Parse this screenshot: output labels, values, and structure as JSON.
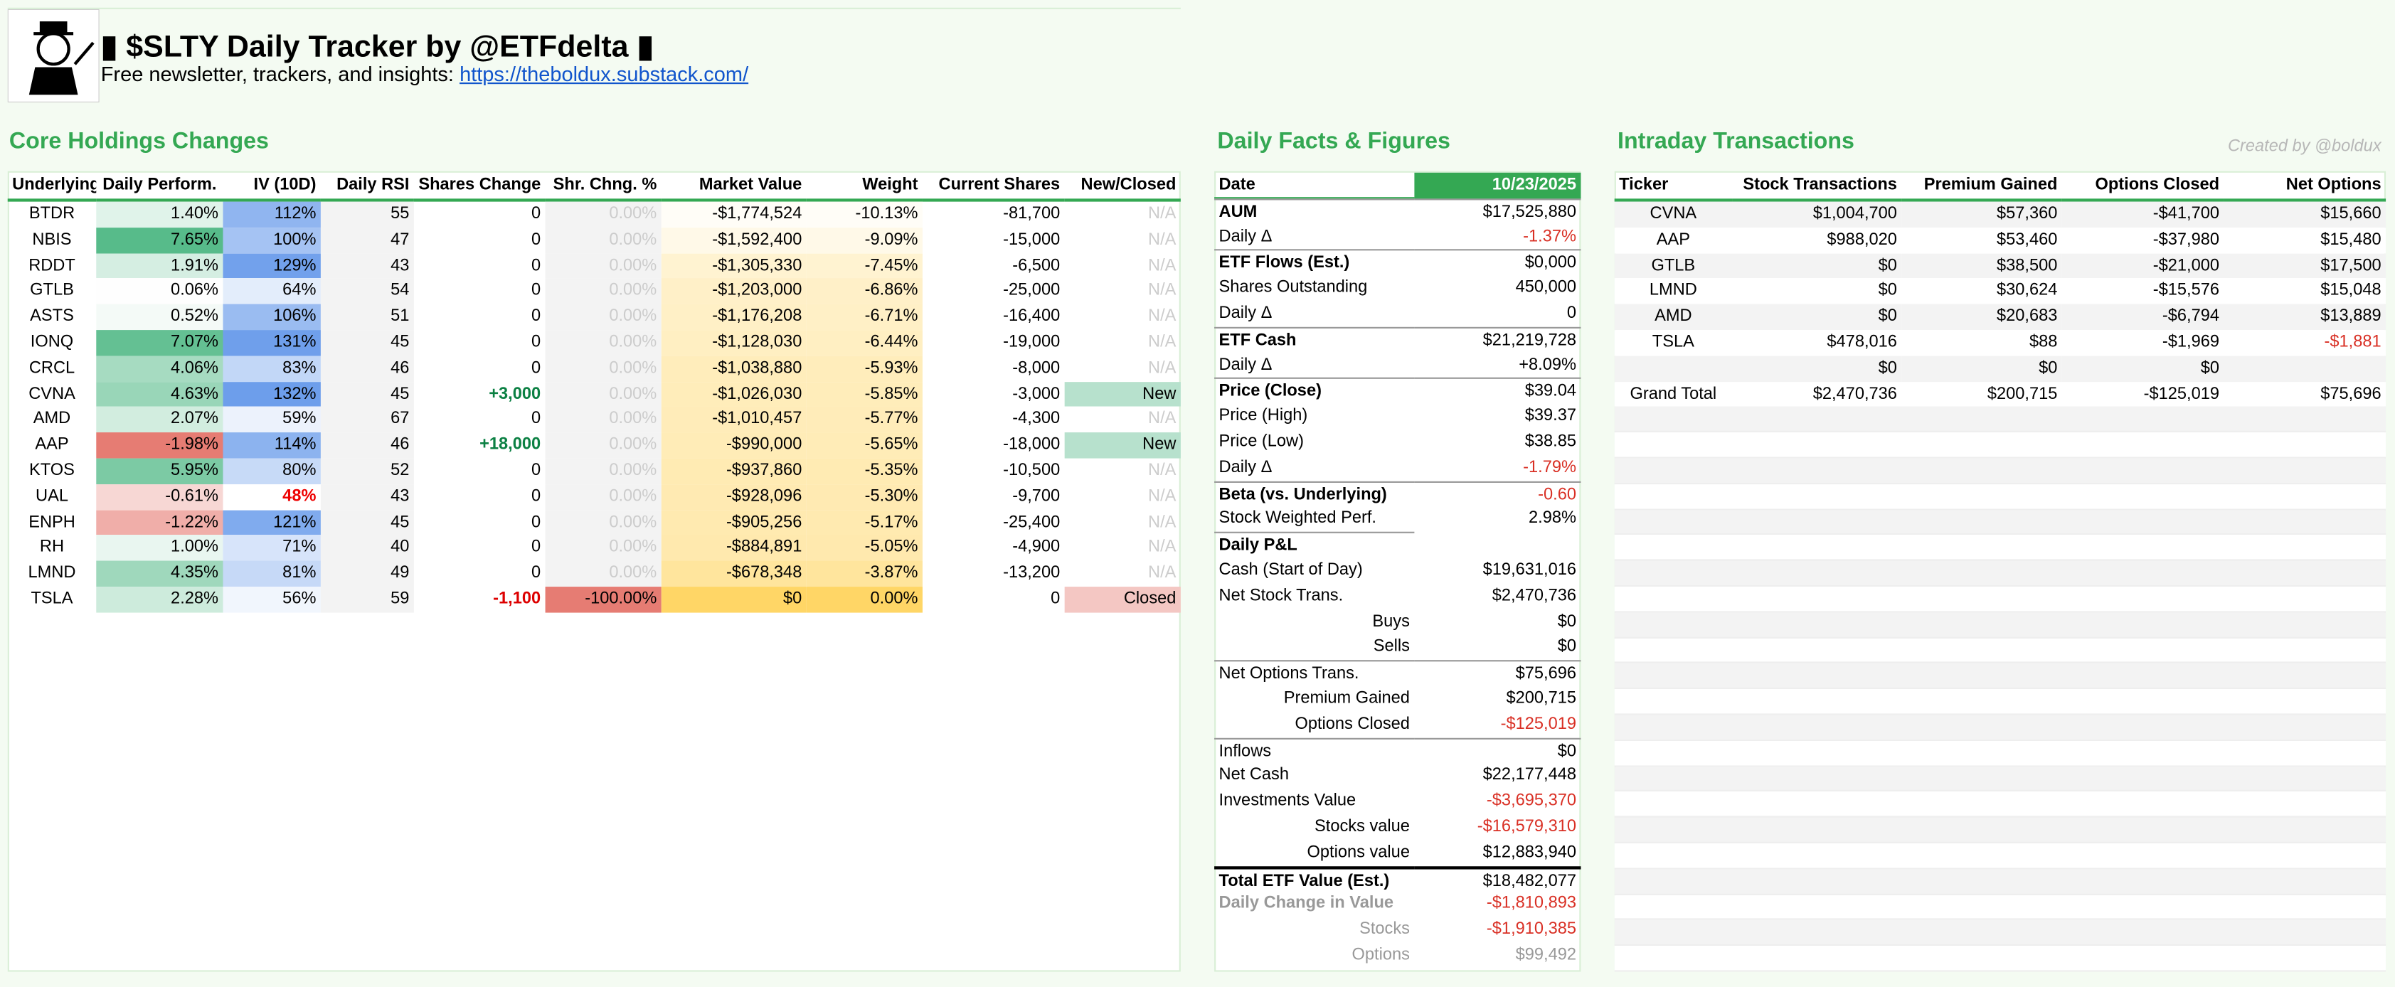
{
  "header": {
    "title": "$SLTY Daily Tracker by @ETFdelta",
    "subtitle": "Free newsletter, trackers, and insights:",
    "link": "https://theboldux.substack.com/",
    "credit": "Created by @boldux"
  },
  "holdings": {
    "title": "Core Holdings Changes",
    "columns": [
      "Underlying",
      "Daily Perform.",
      "IV (10D)",
      "Daily RSI",
      "Shares Change",
      "Shr. Chng. %",
      "Market Value",
      "Weight",
      "Current Shares",
      "New/Closed"
    ],
    "rows": [
      [
        "BTDR",
        "1.40%",
        "112%",
        "55",
        "0",
        "0.00%",
        "-$1,774,524",
        "-10.13%",
        "-81,700",
        "N/A"
      ],
      [
        "NBIS",
        "7.65%",
        "100%",
        "47",
        "0",
        "0.00%",
        "-$1,592,400",
        "-9.09%",
        "-15,000",
        "N/A"
      ],
      [
        "RDDT",
        "1.91%",
        "129%",
        "43",
        "0",
        "0.00%",
        "-$1,305,330",
        "-7.45%",
        "-6,500",
        "N/A"
      ],
      [
        "GTLB",
        "0.06%",
        "64%",
        "54",
        "0",
        "0.00%",
        "-$1,203,000",
        "-6.86%",
        "-25,000",
        "N/A"
      ],
      [
        "ASTS",
        "0.52%",
        "106%",
        "51",
        "0",
        "0.00%",
        "-$1,176,208",
        "-6.71%",
        "-16,400",
        "N/A"
      ],
      [
        "IONQ",
        "7.07%",
        "131%",
        "45",
        "0",
        "0.00%",
        "-$1,128,030",
        "-6.44%",
        "-19,000",
        "N/A"
      ],
      [
        "CRCL",
        "4.06%",
        "83%",
        "46",
        "0",
        "0.00%",
        "-$1,038,880",
        "-5.93%",
        "-8,000",
        "N/A"
      ],
      [
        "CVNA",
        "4.63%",
        "132%",
        "45",
        "+3,000",
        "0.00%",
        "-$1,026,030",
        "-5.85%",
        "-3,000",
        "New"
      ],
      [
        "AMD",
        "2.07%",
        "59%",
        "67",
        "0",
        "0.00%",
        "-$1,010,457",
        "-5.77%",
        "-4,300",
        "N/A"
      ],
      [
        "AAP",
        "-1.98%",
        "114%",
        "46",
        "+18,000",
        "0.00%",
        "-$990,000",
        "-5.65%",
        "-18,000",
        "New"
      ],
      [
        "KTOS",
        "5.95%",
        "80%",
        "52",
        "0",
        "0.00%",
        "-$937,860",
        "-5.35%",
        "-10,500",
        "N/A"
      ],
      [
        "UAL",
        "-0.61%",
        "48%",
        "43",
        "0",
        "0.00%",
        "-$928,096",
        "-5.30%",
        "-9,700",
        "N/A"
      ],
      [
        "ENPH",
        "-1.22%",
        "121%",
        "45",
        "0",
        "0.00%",
        "-$905,256",
        "-5.17%",
        "-25,400",
        "N/A"
      ],
      [
        "RH",
        "1.00%",
        "71%",
        "40",
        "0",
        "0.00%",
        "-$884,891",
        "-5.05%",
        "-4,900",
        "N/A"
      ],
      [
        "LMND",
        "4.35%",
        "81%",
        "49",
        "0",
        "0.00%",
        "-$678,348",
        "-3.87%",
        "-13,200",
        "N/A"
      ],
      [
        "TSLA",
        "2.28%",
        "56%",
        "59",
        "-1,100",
        "-100.00%",
        "$0",
        "0.00%",
        "0",
        "Closed"
      ]
    ]
  },
  "facts": {
    "title": "Daily Facts & Figures",
    "rows": [
      [
        "Date",
        "10/23/2025"
      ],
      [
        "AUM",
        "$17,525,880"
      ],
      [
        "Daily Δ",
        "-1.37%"
      ],
      [
        "ETF Flows (Est.)",
        "$0,000"
      ],
      [
        "Shares Outstanding",
        "450,000"
      ],
      [
        "Daily Δ",
        "0"
      ],
      [
        "ETF Cash",
        "$21,219,728"
      ],
      [
        "Daily Δ",
        "+8.09%"
      ],
      [
        "Price (Close)",
        "$39.04"
      ],
      [
        "Price (High)",
        "$39.37"
      ],
      [
        "Price (Low)",
        "$38.85"
      ],
      [
        "Daily Δ",
        "-1.79%"
      ],
      [
        "Beta (vs. Underlying)",
        "-0.60"
      ],
      [
        "Stock Weighted Perf.",
        "2.98%"
      ],
      [
        "Daily P&L"
      ],
      [
        "Cash (Start of Day)",
        "$19,631,016"
      ],
      [
        "Net Stock Trans.",
        "$2,470,736"
      ],
      [
        "Buys",
        "$0"
      ],
      [
        "Sells",
        "$0"
      ],
      [
        "Net Options Trans.",
        "$75,696"
      ],
      [
        "Premium Gained",
        "$200,715"
      ],
      [
        "Options Closed",
        "-$125,019"
      ],
      [
        "Inflows",
        "$0"
      ],
      [
        "Net Cash",
        "$22,177,448"
      ],
      [
        "Investments Value",
        "-$3,695,370"
      ],
      [
        "Stocks value",
        "-$16,579,310"
      ],
      [
        "Options value",
        "$12,883,940"
      ],
      [
        "Total ETF Value (Est.)",
        "$18,482,077"
      ],
      [
        "Daily Change in Value",
        "-$1,810,893"
      ],
      [
        "Stocks",
        "-$1,910,385"
      ],
      [
        "Options",
        "$99,492"
      ]
    ]
  },
  "intraday": {
    "title": "Intraday Transactions",
    "columns": [
      "Ticker",
      "Stock Transactions",
      "Premium Gained",
      "Options Closed",
      "Net Options"
    ],
    "rows": [
      [
        "CVNA",
        "$1,004,700",
        "$57,360",
        "-$41,700",
        "$15,660"
      ],
      [
        "AAP",
        "$988,020",
        "$53,460",
        "-$37,980",
        "$15,480"
      ],
      [
        "GTLB",
        "$0",
        "$38,500",
        "-$21,000",
        "$17,500"
      ],
      [
        "LMND",
        "$0",
        "$30,624",
        "-$15,576",
        "$15,048"
      ],
      [
        "AMD",
        "$0",
        "$20,683",
        "-$6,794",
        "$13,889"
      ],
      [
        "TSLA",
        "$478,016",
        "$88",
        "-$1,969",
        "-$1,881"
      ],
      [
        null,
        "$0",
        "$0",
        "$0",
        null
      ],
      [
        "Grand Total",
        "$2,470,736",
        "$200,715",
        "-$125,019",
        "$75,696"
      ]
    ]
  }
}
